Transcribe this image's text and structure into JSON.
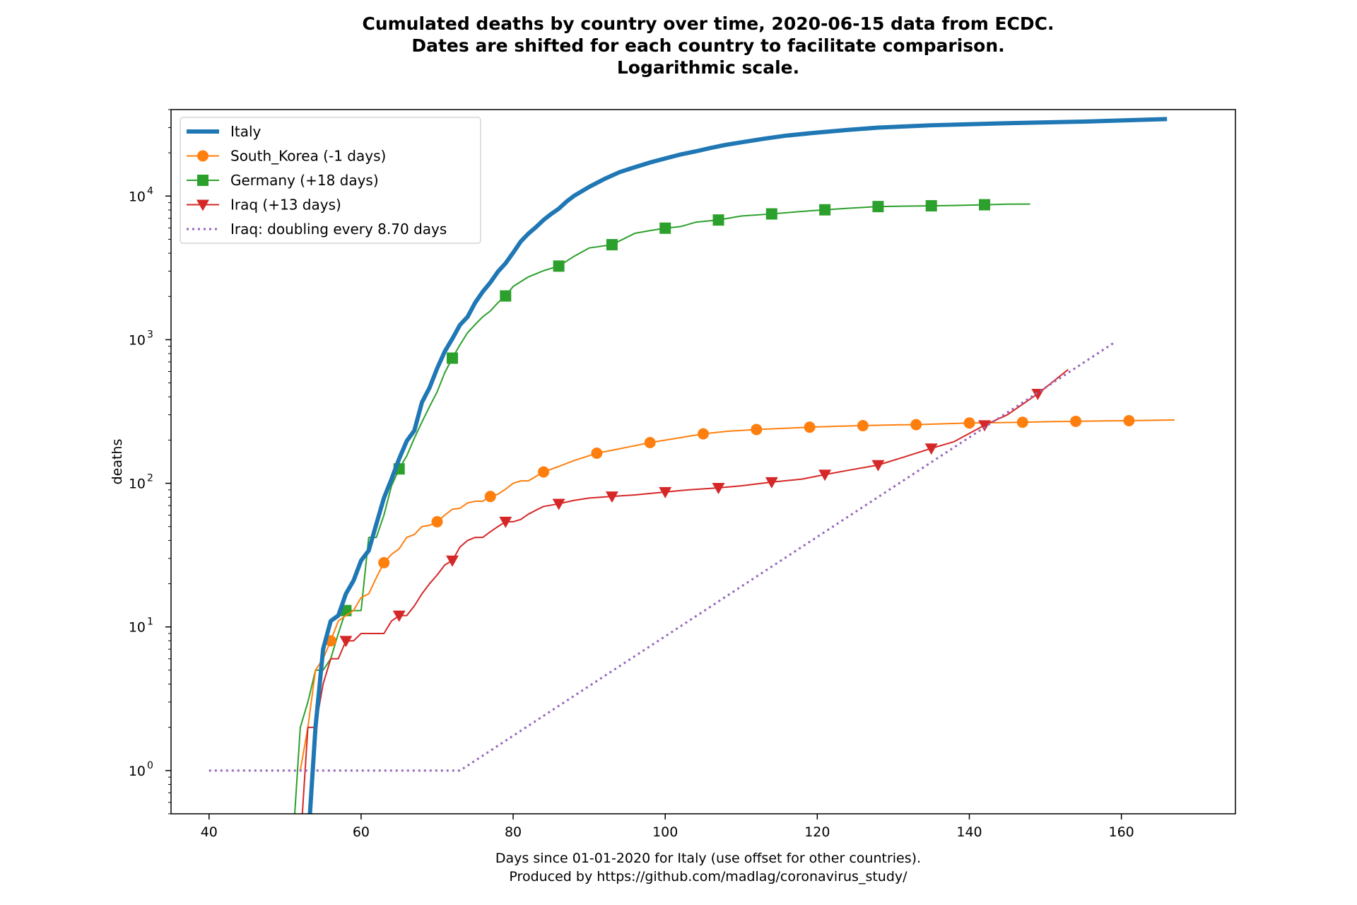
{
  "chart_data": {
    "type": "line",
    "title": [
      "Cumulated deaths by country over time, 2020-06-15 data from ECDC.",
      "Dates are shifted for each country to facilitate comparison.",
      "Logarithmic scale."
    ],
    "xlabel": [
      "Days since 01-01-2020 for Italy (use offset for other countries).",
      "Produced by https://github.com/madlag/coronavirus_study/"
    ],
    "ylabel": "deaths",
    "xlim": [
      35,
      175
    ],
    "ylim": [
      0.5,
      40000
    ],
    "yscale": "log",
    "grid": false,
    "legend_position": "top-left",
    "x_ticks": [
      40,
      60,
      80,
      100,
      120,
      140,
      160
    ],
    "y_ticks": [
      {
        "value": 1,
        "base": "10",
        "exp": "0"
      },
      {
        "value": 10,
        "base": "10",
        "exp": "1"
      },
      {
        "value": 100,
        "base": "10",
        "exp": "2"
      },
      {
        "value": 1000,
        "base": "10",
        "exp": "3"
      },
      {
        "value": 10000,
        "base": "10",
        "exp": "4"
      }
    ],
    "series": [
      {
        "name": "Italy",
        "color": "#1f77b4",
        "marker": "none",
        "style": "solid-thick",
        "x": [
          53,
          54,
          55,
          56,
          57,
          58,
          59,
          60,
          61,
          62,
          63,
          64,
          65,
          66,
          67,
          68,
          69,
          70,
          71,
          72,
          73,
          74,
          75,
          76,
          77,
          78,
          79,
          80,
          81,
          82,
          83,
          84,
          85,
          86,
          87,
          88,
          90,
          92,
          94,
          96,
          98,
          100,
          102,
          104,
          106,
          108,
          110,
          113,
          116,
          120,
          124,
          128,
          135,
          145,
          155,
          166
        ],
        "y": [
          0.3,
          2,
          7,
          11,
          12,
          17,
          21,
          29,
          34,
          52,
          79,
          107,
          148,
          197,
          233,
          366,
          463,
          631,
          827,
          1016,
          1266,
          1441,
          1809,
          2158,
          2503,
          2978,
          3405,
          4032,
          4825,
          5476,
          6077,
          6820,
          7503,
          8165,
          9134,
          10023,
          11591,
          13155,
          14681,
          15887,
          17127,
          18279,
          19468,
          20465,
          21645,
          22745,
          23660,
          25085,
          26384,
          27682,
          28884,
          29958,
          31106,
          32169,
          33000,
          34371
        ]
      },
      {
        "name": "South_Korea (-1 days)",
        "color": "#ff7f0e",
        "marker": "circle",
        "style": "solid",
        "x": [
          52,
          53,
          54,
          55,
          56,
          57,
          58,
          59,
          60,
          61,
          62,
          63,
          64,
          65,
          66,
          67,
          68,
          69,
          70,
          71,
          72,
          73,
          74,
          75,
          76,
          77,
          78,
          79,
          80,
          81,
          82,
          84,
          86,
          88,
          91,
          94,
          98,
          102,
          105,
          108,
          112,
          116,
          119,
          123,
          126,
          130,
          133,
          137,
          140,
          143,
          147,
          151,
          154,
          158,
          161,
          167
        ],
        "y": [
          1,
          2,
          5,
          6,
          8,
          11,
          12,
          13,
          16,
          17,
          22,
          28,
          32,
          35,
          42,
          44,
          50,
          51,
          54,
          60,
          66,
          67,
          73,
          75,
          75,
          81,
          84,
          91,
          100,
          104,
          104,
          120,
          131,
          144,
          162,
          174,
          192,
          208,
          221,
          230,
          237,
          242,
          246,
          250,
          252,
          255,
          256,
          260,
          263,
          264,
          266,
          269,
          270,
          272,
          273,
          276
        ]
      },
      {
        "name": "Germany (+18 days)",
        "color": "#2ca02c",
        "marker": "square",
        "style": "solid",
        "x": [
          51,
          52,
          53,
          54,
          55,
          56,
          57,
          58,
          59,
          60,
          61,
          62,
          63,
          64,
          65,
          66,
          67,
          68,
          69,
          70,
          71,
          72,
          73,
          74,
          75,
          76,
          77,
          78,
          79,
          80,
          82,
          84,
          86,
          88,
          90,
          93,
          96,
          98,
          100,
          102,
          104,
          107,
          110,
          114,
          118,
          121,
          124,
          128,
          131,
          135,
          138,
          142,
          145,
          148
        ],
        "y": [
          0.3,
          2,
          3,
          5,
          5,
          6,
          9,
          13,
          13,
          13,
          42,
          42,
          60,
          96,
          126,
          155,
          206,
          267,
          342,
          433,
          589,
          744,
          920,
          1119,
          1275,
          1444,
          1584,
          1810,
          2016,
          2349,
          2736,
          3022,
          3254,
          3804,
          4352,
          4586,
          5500,
          5750,
          5976,
          6126,
          6575,
          6812,
          7266,
          7510,
          7824,
          8022,
          8216,
          8450,
          8500,
          8555,
          8600,
          8700,
          8783,
          8800
        ]
      },
      {
        "name": "Iraq (+13 days)",
        "color": "#d62728",
        "marker": "triangle-down",
        "style": "solid",
        "x": [
          52,
          53,
          54,
          55,
          56,
          57,
          58,
          59,
          60,
          61,
          62,
          63,
          64,
          65,
          66,
          67,
          68,
          69,
          70,
          71,
          72,
          73,
          74,
          75,
          76,
          77,
          78,
          79,
          80,
          81,
          82,
          83,
          84,
          86,
          88,
          90,
          93,
          96,
          100,
          103,
          107,
          110,
          114,
          118,
          121,
          124,
          128,
          131,
          135,
          138,
          142,
          145,
          149,
          153
        ],
        "y": [
          0.3,
          2,
          2,
          4,
          6,
          6,
          8,
          8,
          9,
          9,
          9,
          9,
          11,
          12,
          12,
          14,
          17,
          20,
          23,
          27,
          29,
          36,
          40,
          42,
          42,
          46,
          50,
          54,
          54,
          56,
          61,
          65,
          69,
          72,
          76,
          79,
          81,
          83,
          87,
          90,
          93,
          96,
          102,
          107,
          115,
          123,
          134,
          150,
          175,
          195,
          254,
          300,
          420,
          620
        ]
      },
      {
        "name": "Iraq: doubling every 8.70 days",
        "color": "#9467bd",
        "marker": "none",
        "style": "dotted",
        "x": [
          40,
          73,
          159
        ],
        "y": [
          1,
          1,
          950
        ]
      }
    ],
    "markers": {
      "South_Korea (-1 days)": [
        56,
        63,
        70,
        77,
        84,
        91,
        98,
        105,
        112,
        119,
        126,
        133,
        140,
        147,
        154,
        161
      ],
      "Germany (+18 days)": [
        51,
        58,
        65,
        72,
        79,
        86,
        93,
        100,
        107,
        114,
        121,
        128,
        135,
        142
      ],
      "Iraq (+13 days)": [
        58,
        65,
        72,
        79,
        86,
        93,
        100,
        107,
        114,
        121,
        128,
        135,
        142,
        149
      ]
    }
  }
}
